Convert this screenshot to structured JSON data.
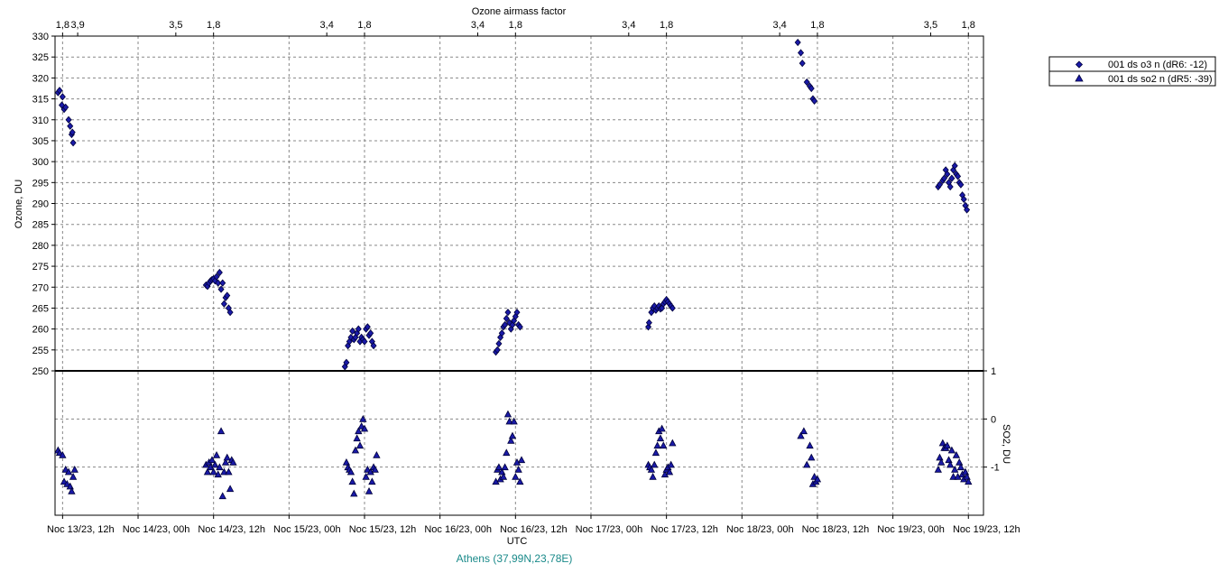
{
  "chart_data": {
    "type": "scatter",
    "top_axis": {
      "title": "Ozone airmass factor",
      "labels": [
        {
          "x": 13.0,
          "text": "1,8"
        },
        {
          "x": 13.1,
          "text": "3,9"
        },
        {
          "x": 13.75,
          "text": "3,5"
        },
        {
          "x": 14.0,
          "text": "1,8"
        },
        {
          "x": 14.75,
          "text": "3,4"
        },
        {
          "x": 15.0,
          "text": "1,8"
        },
        {
          "x": 15.75,
          "text": "3,4"
        },
        {
          "x": 16.0,
          "text": "1,8"
        },
        {
          "x": 16.75,
          "text": "3,4"
        },
        {
          "x": 17.0,
          "text": "1,8"
        },
        {
          "x": 17.75,
          "text": "3,4"
        },
        {
          "x": 18.0,
          "text": "1,8"
        },
        {
          "x": 18.75,
          "text": "3,5"
        },
        {
          "x": 19.0,
          "text": "1,8"
        }
      ]
    },
    "x_axis": {
      "title": "UTC",
      "range": [
        12.95,
        19.1
      ],
      "ticks": [
        {
          "x": 13.0,
          "label": "Noc 13/23, 12h"
        },
        {
          "x": 13.5,
          "label": "Noc 14/23, 00h"
        },
        {
          "x": 14.0,
          "label": "Noc 14/23, 12h"
        },
        {
          "x": 14.5,
          "label": "Noc 15/23, 00h"
        },
        {
          "x": 15.0,
          "label": "Noc 15/23, 12h"
        },
        {
          "x": 15.5,
          "label": "Noc 16/23, 00h"
        },
        {
          "x": 16.0,
          "label": "Noc 16/23, 12h"
        },
        {
          "x": 16.5,
          "label": "Noc 17/23, 00h"
        },
        {
          "x": 17.0,
          "label": "Noc 17/23, 12h"
        },
        {
          "x": 17.5,
          "label": "Noc 18/23, 00h"
        },
        {
          "x": 18.0,
          "label": "Noc 18/23, 12h"
        },
        {
          "x": 18.5,
          "label": "Noc 19/23, 00h"
        },
        {
          "x": 19.0,
          "label": "Noc 19/23, 12h"
        }
      ]
    },
    "y_axis_ozone": {
      "title": "Ozone, DU",
      "range": [
        250,
        330
      ],
      "ticks": [
        "250",
        "255",
        "260",
        "265",
        "270",
        "275",
        "280",
        "285",
        "290",
        "295",
        "300",
        "305",
        "310",
        "315",
        "320",
        "325",
        "330"
      ]
    },
    "y_axis_so2": {
      "title": "SO2, DU",
      "range": [
        -2,
        1
      ],
      "ticks": [
        "1",
        "0",
        "-1"
      ]
    },
    "grid": true,
    "legend_placement": "top-right",
    "legend": [
      {
        "label": "001 ds o3  n (dR6: -12)",
        "marker": "diamond"
      },
      {
        "label": "001 ds so2 n (dR5: -39)",
        "marker": "triangle"
      }
    ],
    "marker_color": "#1a1aa8",
    "series": [
      {
        "name": "001 ds o3  n (dR6: -12)",
        "points": [
          [
            12.97,
            316.5
          ],
          [
            12.98,
            317
          ],
          [
            12.995,
            313.5
          ],
          [
            13.0,
            315.5
          ],
          [
            13.01,
            312.5
          ],
          [
            13.02,
            313
          ],
          [
            13.04,
            310
          ],
          [
            13.05,
            308.5
          ],
          [
            13.06,
            306.5
          ],
          [
            13.065,
            307
          ],
          [
            13.07,
            304.5
          ],
          [
            13.95,
            270.5
          ],
          [
            13.96,
            270.2
          ],
          [
            13.97,
            271
          ],
          [
            13.98,
            271.5
          ],
          [
            13.99,
            271.8
          ],
          [
            14.0,
            272
          ],
          [
            14.01,
            271.5
          ],
          [
            14.02,
            272.5
          ],
          [
            14.03,
            271
          ],
          [
            14.04,
            273.5
          ],
          [
            14.05,
            269.5
          ],
          [
            14.06,
            271
          ],
          [
            14.07,
            266
          ],
          [
            14.08,
            267.5
          ],
          [
            14.09,
            268
          ],
          [
            14.1,
            265
          ],
          [
            14.11,
            264
          ],
          [
            14.87,
            251
          ],
          [
            14.88,
            252
          ],
          [
            14.89,
            256
          ],
          [
            14.9,
            257
          ],
          [
            14.91,
            258
          ],
          [
            14.92,
            259.5
          ],
          [
            14.93,
            257.5
          ],
          [
            14.94,
            258
          ],
          [
            14.95,
            259
          ],
          [
            14.96,
            260
          ],
          [
            14.97,
            257
          ],
          [
            14.98,
            258
          ],
          [
            14.99,
            257.5
          ],
          [
            15.0,
            257
          ],
          [
            15.01,
            260
          ],
          [
            15.02,
            260.5
          ],
          [
            15.03,
            258.5
          ],
          [
            15.04,
            259
          ],
          [
            15.05,
            257
          ],
          [
            15.06,
            256
          ],
          [
            15.87,
            254.5
          ],
          [
            15.88,
            255
          ],
          [
            15.89,
            256.5
          ],
          [
            15.9,
            258
          ],
          [
            15.91,
            259
          ],
          [
            15.92,
            260.5
          ],
          [
            15.93,
            261
          ],
          [
            15.94,
            262.5
          ],
          [
            15.95,
            264
          ],
          [
            15.96,
            261.5
          ],
          [
            15.97,
            260
          ],
          [
            15.98,
            261
          ],
          [
            15.99,
            262
          ],
          [
            16.0,
            263
          ],
          [
            16.01,
            264
          ],
          [
            16.02,
            261
          ],
          [
            16.03,
            260.5
          ],
          [
            16.88,
            260.5
          ],
          [
            16.885,
            261.5
          ],
          [
            16.9,
            264
          ],
          [
            16.91,
            265
          ],
          [
            16.92,
            265.5
          ],
          [
            16.93,
            264.5
          ],
          [
            16.94,
            265
          ],
          [
            16.95,
            265.5
          ],
          [
            16.96,
            264.8
          ],
          [
            16.97,
            265
          ],
          [
            16.98,
            266
          ],
          [
            16.99,
            266.5
          ],
          [
            17.0,
            267
          ],
          [
            17.01,
            266.5
          ],
          [
            17.02,
            266
          ],
          [
            17.03,
            265.5
          ],
          [
            17.04,
            265
          ],
          [
            17.87,
            328.5
          ],
          [
            17.89,
            326
          ],
          [
            17.9,
            323.5
          ],
          [
            17.93,
            319
          ],
          [
            17.95,
            318
          ],
          [
            17.96,
            317.5
          ],
          [
            17.97,
            315
          ],
          [
            17.98,
            314.5
          ],
          [
            18.8,
            294
          ],
          [
            18.81,
            294.5
          ],
          [
            18.83,
            295.5
          ],
          [
            18.84,
            296
          ],
          [
            18.85,
            298
          ],
          [
            18.86,
            297
          ],
          [
            18.87,
            295
          ],
          [
            18.88,
            294
          ],
          [
            18.89,
            296
          ],
          [
            18.9,
            298
          ],
          [
            18.91,
            299
          ],
          [
            18.92,
            297
          ],
          [
            18.93,
            296.5
          ],
          [
            18.94,
            295
          ],
          [
            18.95,
            294.5
          ],
          [
            18.96,
            292
          ],
          [
            18.97,
            291
          ],
          [
            18.98,
            289.5
          ],
          [
            18.99,
            288.5
          ]
        ]
      },
      {
        "name": "001 ds so2 n (dR5: -39)",
        "points": [
          [
            12.97,
            -0.65
          ],
          [
            12.98,
            -0.7
          ],
          [
            13.0,
            -0.75
          ],
          [
            13.01,
            -1.3
          ],
          [
            13.02,
            -1.05
          ],
          [
            13.03,
            -1.35
          ],
          [
            13.04,
            -1.1
          ],
          [
            13.05,
            -1.4
          ],
          [
            13.06,
            -1.5
          ],
          [
            13.07,
            -1.2
          ],
          [
            13.08,
            -1.05
          ],
          [
            13.95,
            -0.95
          ],
          [
            13.96,
            -1.1
          ],
          [
            13.97,
            -0.9
          ],
          [
            13.98,
            -1.0
          ],
          [
            13.99,
            -0.85
          ],
          [
            14.0,
            -1.1
          ],
          [
            14.01,
            -0.95
          ],
          [
            14.02,
            -0.75
          ],
          [
            14.03,
            -1.15
          ],
          [
            14.04,
            -1.0
          ],
          [
            14.05,
            -0.25
          ],
          [
            14.06,
            -1.6
          ],
          [
            14.07,
            -1.1
          ],
          [
            14.08,
            -0.9
          ],
          [
            14.09,
            -0.8
          ],
          [
            14.1,
            -1.1
          ],
          [
            14.11,
            -1.45
          ],
          [
            14.12,
            -0.85
          ],
          [
            14.13,
            -0.9
          ],
          [
            14.88,
            -0.9
          ],
          [
            14.89,
            -1.0
          ],
          [
            14.9,
            -1.05
          ],
          [
            14.91,
            -1.1
          ],
          [
            14.92,
            -1.3
          ],
          [
            14.93,
            -1.55
          ],
          [
            14.94,
            -0.65
          ],
          [
            14.95,
            -0.4
          ],
          [
            14.96,
            -0.25
          ],
          [
            14.97,
            -0.55
          ],
          [
            14.98,
            -0.15
          ],
          [
            14.99,
            -0.0
          ],
          [
            15.0,
            -0.2
          ],
          [
            15.01,
            -1.2
          ],
          [
            15.02,
            -1.05
          ],
          [
            15.03,
            -1.5
          ],
          [
            15.04,
            -1.1
          ],
          [
            15.05,
            -1.3
          ],
          [
            15.06,
            -1.0
          ],
          [
            15.07,
            -1.05
          ],
          [
            15.08,
            -0.75
          ],
          [
            15.87,
            -1.3
          ],
          [
            15.88,
            -1.05
          ],
          [
            15.89,
            -1.0
          ],
          [
            15.9,
            -1.25
          ],
          [
            15.91,
            -1.1
          ],
          [
            15.92,
            -1.2
          ],
          [
            15.93,
            -1.0
          ],
          [
            15.94,
            -0.7
          ],
          [
            15.95,
            0.1
          ],
          [
            15.96,
            -0.05
          ],
          [
            15.97,
            -0.45
          ],
          [
            15.98,
            -0.35
          ],
          [
            15.99,
            -0.05
          ],
          [
            16.0,
            -1.2
          ],
          [
            16.01,
            -0.9
          ],
          [
            16.02,
            -1.05
          ],
          [
            16.03,
            -1.3
          ],
          [
            16.04,
            -0.85
          ],
          [
            16.88,
            -0.95
          ],
          [
            16.89,
            -1.0
          ],
          [
            16.9,
            -1.05
          ],
          [
            16.91,
            -1.2
          ],
          [
            16.92,
            -0.95
          ],
          [
            16.93,
            -0.7
          ],
          [
            16.94,
            -0.55
          ],
          [
            16.95,
            -0.25
          ],
          [
            16.96,
            -0.4
          ],
          [
            16.97,
            -0.2
          ],
          [
            16.98,
            -0.55
          ],
          [
            16.99,
            -1.15
          ],
          [
            17.0,
            -1.05
          ],
          [
            17.01,
            -1.0
          ],
          [
            17.02,
            -1.1
          ],
          [
            17.03,
            -0.95
          ],
          [
            17.04,
            -0.5
          ],
          [
            17.89,
            -0.35
          ],
          [
            17.91,
            -0.25
          ],
          [
            17.93,
            -0.95
          ],
          [
            17.95,
            -0.55
          ],
          [
            17.96,
            -0.8
          ],
          [
            17.97,
            -1.35
          ],
          [
            17.98,
            -1.2
          ],
          [
            17.99,
            -1.3
          ],
          [
            18.0,
            -1.25
          ],
          [
            18.8,
            -1.05
          ],
          [
            18.81,
            -0.8
          ],
          [
            18.82,
            -0.9
          ],
          [
            18.83,
            -0.5
          ],
          [
            18.84,
            -0.6
          ],
          [
            18.85,
            -0.6
          ],
          [
            18.86,
            -0.55
          ],
          [
            18.87,
            -0.85
          ],
          [
            18.88,
            -0.95
          ],
          [
            18.89,
            -0.65
          ],
          [
            18.9,
            -1.2
          ],
          [
            18.91,
            -1.05
          ],
          [
            18.92,
            -0.75
          ],
          [
            18.93,
            -1.2
          ],
          [
            18.94,
            -0.9
          ],
          [
            18.95,
            -1.0
          ],
          [
            18.96,
            -1.15
          ],
          [
            18.97,
            -1.25
          ],
          [
            18.98,
            -1.1
          ],
          [
            18.99,
            -1.2
          ],
          [
            19.0,
            -1.3
          ]
        ]
      }
    ],
    "annotation": "Athens (37,99N,23,78E)"
  }
}
